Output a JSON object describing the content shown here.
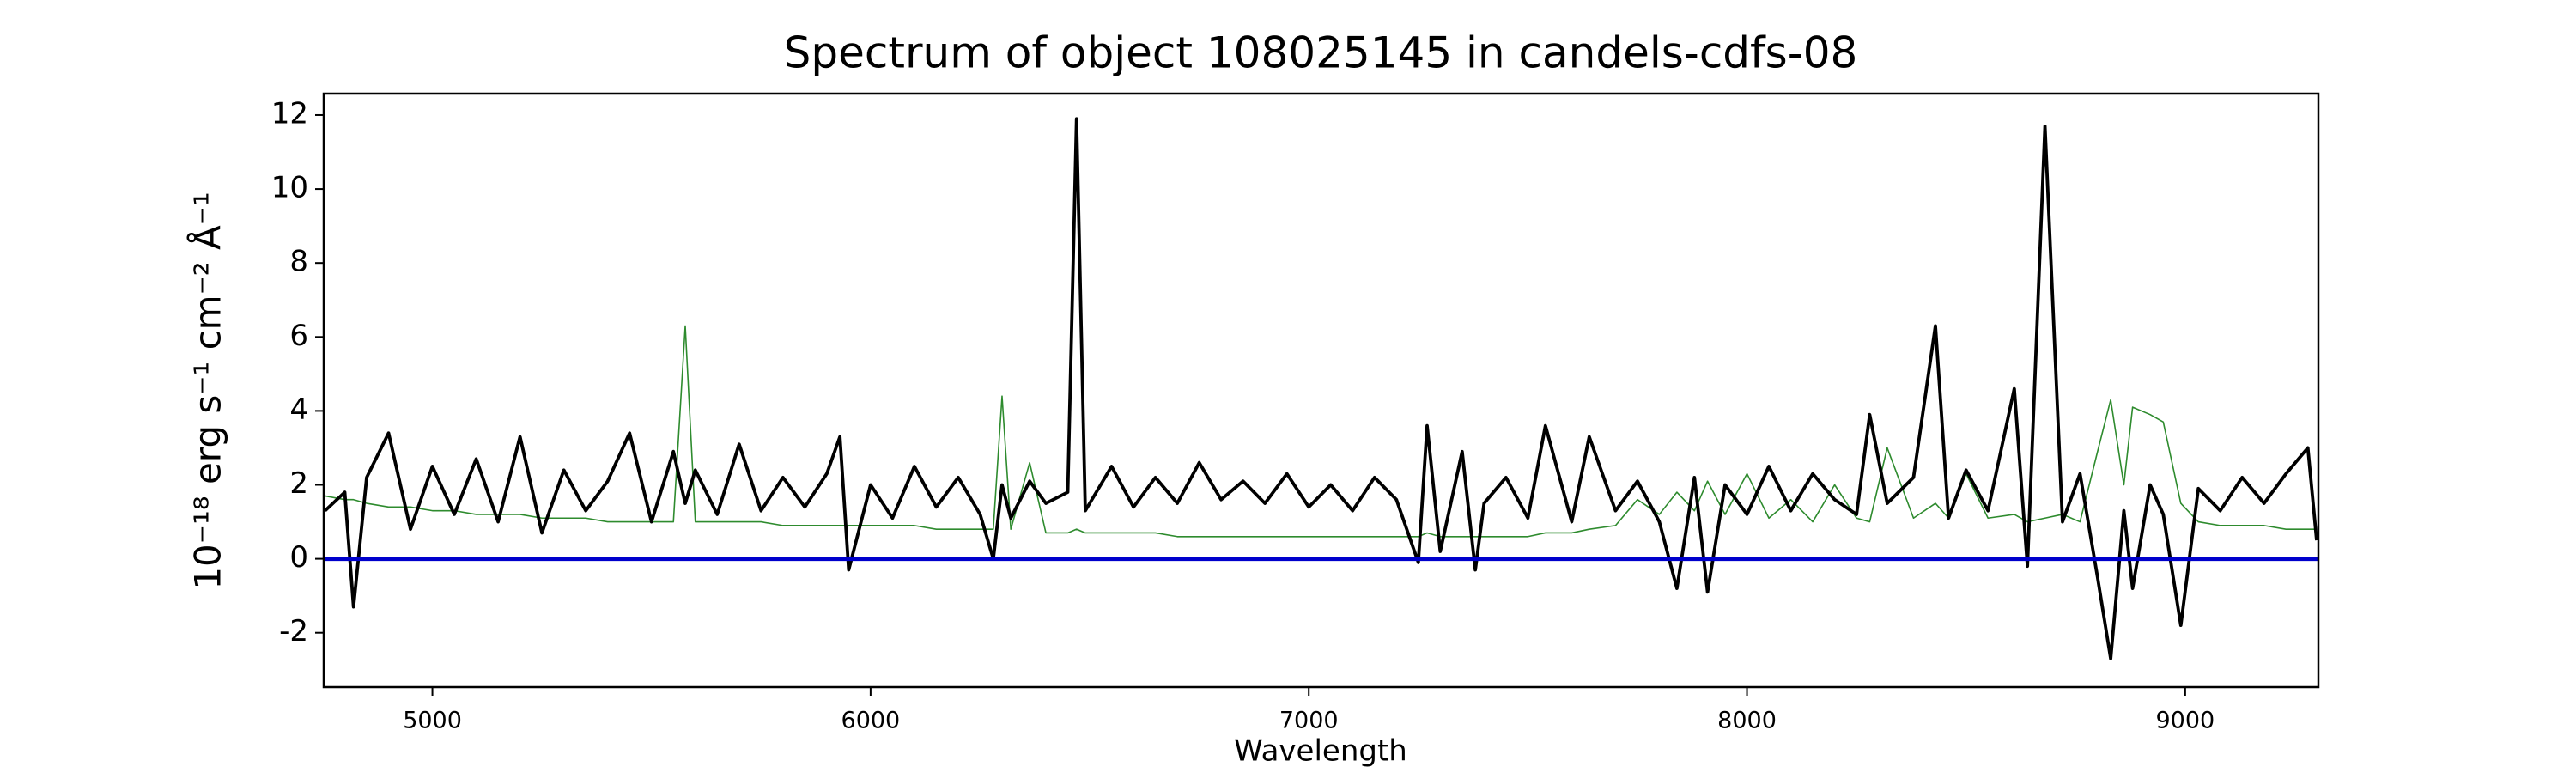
{
  "chart_data": {
    "type": "line",
    "title": "Spectrum of object 108025145 in candels-cdfs-08",
    "x_label": "Wavelength",
    "y_label": "10⁻¹⁸ erg s⁻¹ cm⁻² Å⁻¹",
    "xlim": [
      4752,
      9304
    ],
    "ylim": [
      -3.47,
      12.58
    ],
    "xticks": [
      5000,
      6000,
      7000,
      8000,
      9000
    ],
    "yticks": [
      -2,
      0,
      2,
      4,
      6,
      8,
      10,
      12
    ],
    "hline": {
      "value": 0,
      "color": "#0000cc"
    },
    "x": [
      4755,
      4800,
      4820,
      4850,
      4900,
      4950,
      5000,
      5050,
      5100,
      5150,
      5200,
      5250,
      5300,
      5350,
      5400,
      5450,
      5500,
      5550,
      5577,
      5600,
      5650,
      5700,
      5750,
      5800,
      5850,
      5900,
      5930,
      5950,
      6000,
      6050,
      6100,
      6150,
      6200,
      6250,
      6280,
      6300,
      6320,
      6363,
      6400,
      6450,
      6470,
      6490,
      6550,
      6600,
      6650,
      6700,
      6750,
      6800,
      6850,
      6900,
      6950,
      7000,
      7050,
      7100,
      7150,
      7200,
      7250,
      7270,
      7300,
      7350,
      7380,
      7400,
      7450,
      7500,
      7540,
      7600,
      7640,
      7700,
      7750,
      7800,
      7840,
      7880,
      7910,
      7950,
      8000,
      8050,
      8100,
      8150,
      8200,
      8250,
      8280,
      8320,
      8380,
      8430,
      8460,
      8500,
      8550,
      8610,
      8640,
      8680,
      8720,
      8760,
      8800,
      8830,
      8860,
      8880,
      8920,
      8950,
      8990,
      9030,
      9080,
      9130,
      9180,
      9230,
      9280,
      9300
    ],
    "series": [
      {
        "color": "#2e8b2e",
        "values": [
          1.7,
          1.6,
          1.6,
          1.5,
          1.4,
          1.4,
          1.3,
          1.3,
          1.2,
          1.2,
          1.2,
          1.1,
          1.1,
          1.1,
          1.0,
          1.0,
          1.0,
          1.0,
          6.3,
          1.0,
          1.0,
          1.0,
          1.0,
          0.9,
          0.9,
          0.9,
          0.9,
          0.9,
          0.9,
          0.9,
          0.9,
          0.8,
          0.8,
          0.8,
          0.8,
          4.4,
          0.8,
          2.6,
          0.7,
          0.7,
          0.8,
          0.7,
          0.7,
          0.7,
          0.7,
          0.6,
          0.6,
          0.6,
          0.6,
          0.6,
          0.6,
          0.6,
          0.6,
          0.6,
          0.6,
          0.6,
          0.6,
          0.7,
          0.6,
          0.6,
          0.6,
          0.6,
          0.6,
          0.6,
          0.7,
          0.7,
          0.8,
          0.9,
          1.6,
          1.2,
          1.8,
          1.3,
          2.1,
          1.2,
          2.3,
          1.1,
          1.6,
          1.0,
          2.0,
          1.1,
          1.0,
          3.0,
          1.1,
          1.5,
          1.1,
          2.3,
          1.1,
          1.2,
          1.0,
          1.1,
          1.2,
          1.0,
          2.9,
          4.3,
          2.0,
          4.1,
          3.9,
          3.7,
          1.5,
          1.0,
          0.9,
          0.9,
          0.9,
          0.8,
          0.8,
          0.8
        ]
      },
      {
        "color": "#000000",
        "values": [
          1.3,
          1.8,
          -1.3,
          2.2,
          3.4,
          0.8,
          2.5,
          1.2,
          2.7,
          1.0,
          3.3,
          0.7,
          2.4,
          1.3,
          2.1,
          3.4,
          1.0,
          2.9,
          1.5,
          2.4,
          1.2,
          3.1,
          1.3,
          2.2,
          1.4,
          2.3,
          3.3,
          -0.3,
          2.0,
          1.1,
          2.5,
          1.4,
          2.2,
          1.2,
          0.0,
          2.0,
          1.1,
          2.1,
          1.5,
          1.8,
          11.9,
          1.3,
          2.5,
          1.4,
          2.2,
          1.5,
          2.6,
          1.6,
          2.1,
          1.5,
          2.3,
          1.4,
          2.0,
          1.3,
          2.2,
          1.6,
          -0.1,
          3.6,
          0.2,
          2.9,
          -0.3,
          1.5,
          2.2,
          1.1,
          3.6,
          1.0,
          3.3,
          1.3,
          2.1,
          1.0,
          -0.8,
          2.2,
          -0.9,
          2.0,
          1.2,
          2.5,
          1.3,
          2.3,
          1.6,
          1.2,
          3.9,
          1.5,
          2.2,
          6.3,
          1.1,
          2.4,
          1.3,
          4.6,
          -0.2,
          11.7,
          1.0,
          2.3,
          -0.5,
          -2.7,
          1.3,
          -0.8,
          2.0,
          1.2,
          -1.8,
          1.9,
          1.3,
          2.2,
          1.5,
          2.3,
          3.0,
          0.5
        ]
      }
    ]
  }
}
